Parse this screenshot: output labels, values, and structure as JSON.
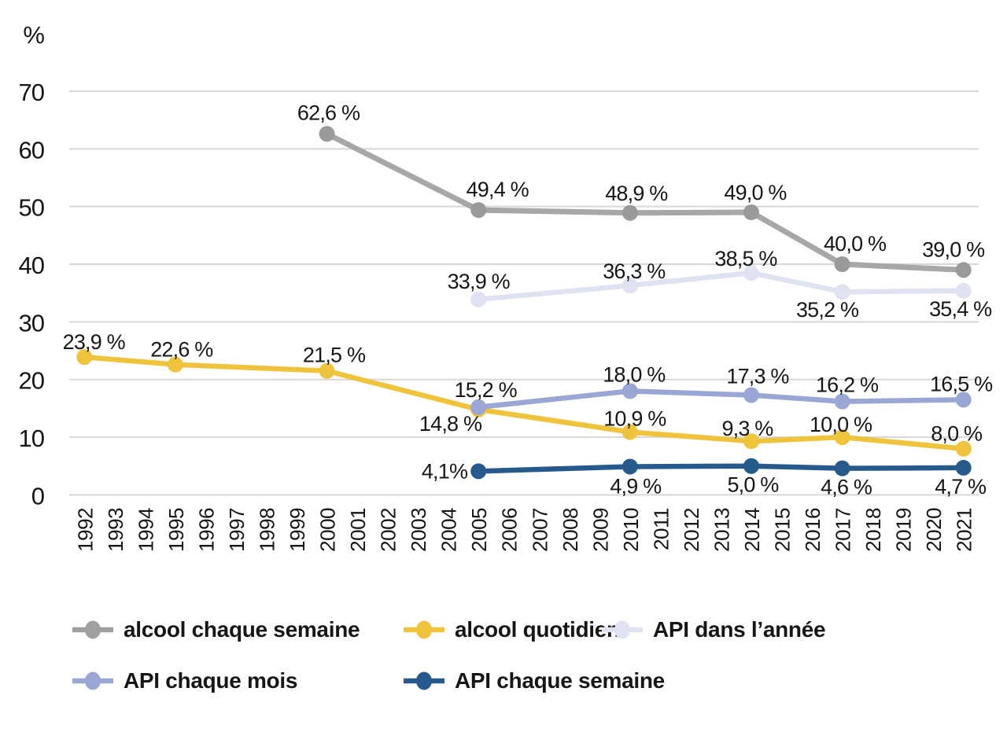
{
  "chart_data": {
    "type": "line",
    "title": "",
    "unit": "%",
    "ylim": [
      0,
      70
    ],
    "y_ticks": [
      70,
      60,
      50,
      40,
      30,
      20,
      10,
      0
    ],
    "grid": true,
    "legend_position": "bottom",
    "x_categories": [
      "1992",
      "1993",
      "1994",
      "1995",
      "1996",
      "1997",
      "1998",
      "1999",
      "2000",
      "2001",
      "2002",
      "2003",
      "2004",
      "2005",
      "2006",
      "2007",
      "2008",
      "2009",
      "2010",
      "2011",
      "2012",
      "2013",
      "2014",
      "2015",
      "2016",
      "2017",
      "2018",
      "2019",
      "2020",
      "2021"
    ],
    "series": [
      {
        "id": "api-dans-lannee",
        "name": "API dans l’année",
        "color": "#dfe2f1",
        "width": 6.5,
        "points": [
          {
            "x": "2005",
            "v": 33.9,
            "label": "33,9 %",
            "dx": 0,
            "dy": -14
          },
          {
            "x": "2010",
            "v": 36.3,
            "label": "36,3 %",
            "dx": 5,
            "dy": -9
          },
          {
            "x": "2014",
            "v": 38.5,
            "label": "38,5 %",
            "dx": -7,
            "dy": -9
          },
          {
            "x": "2017",
            "v": 35.2,
            "label": "35,2 %",
            "dx": -19,
            "dy": 32
          },
          {
            "x": "2021",
            "v": 35.4,
            "label": "35,4 %",
            "dx": -4,
            "dy": 32
          }
        ]
      },
      {
        "id": "alcool-chaque-semaine",
        "name": "alcool chaque semaine",
        "color": "#a7a7a7",
        "marker": "#9a9a9a",
        "width": 7,
        "points": [
          {
            "x": "2000",
            "v": 62.6,
            "label": "62,6 %",
            "dx": 2,
            "dy": -18
          },
          {
            "x": "2005",
            "v": 49.4,
            "label": "49,4 %",
            "dx": 24,
            "dy": -17
          },
          {
            "x": "2010",
            "v": 48.9,
            "label": "48,9 %",
            "dx": 8,
            "dy": -16
          },
          {
            "x": "2014",
            "v": 49.0,
            "label": "49,0 %",
            "dx": 5,
            "dy": -16
          },
          {
            "x": "2017",
            "v": 40.0,
            "label": "40,0 %",
            "dx": 16,
            "dy": -17
          },
          {
            "x": "2021",
            "v": 39.0,
            "label": "39,0 %",
            "dx": -13,
            "dy": -17
          }
        ]
      },
      {
        "id": "alcool-quotidien",
        "name": "alcool quotidien",
        "color": "#f0c33c",
        "width": 6.5,
        "points": [
          {
            "x": "1992",
            "v": 23.9,
            "label": "23,9 %",
            "dx": 12,
            "dy": -10
          },
          {
            "x": "1995",
            "v": 22.6,
            "label": "22,6 %",
            "dx": 8,
            "dy": -10
          },
          {
            "x": "2000",
            "v": 21.5,
            "label": "21,5 %",
            "dx": 9,
            "dy": -11
          },
          {
            "x": "2005",
            "v": 14.8,
            "label": "14,8 %",
            "dx": 4,
            "dy": 27,
            "anchor": "end"
          },
          {
            "x": "2010",
            "v": 10.9,
            "label": "10,9 %",
            "dx": 6,
            "dy": -8
          },
          {
            "x": "2014",
            "v": 9.3,
            "label": "9,3 %",
            "dx": -5,
            "dy": -7
          },
          {
            "x": "2017",
            "v": 10.0,
            "label": "10,0 %",
            "dx": -2,
            "dy": -7
          },
          {
            "x": "2021",
            "v": 8.0,
            "label": "8,0 %",
            "dx": -9,
            "dy": -10
          }
        ]
      },
      {
        "id": "api-chaque-mois",
        "name": "API chaque mois",
        "color": "#9aa7d4",
        "width": 6.5,
        "points": [
          {
            "x": "2005",
            "v": 15.2,
            "label": "15,2 %",
            "dx": 9,
            "dy": -13
          },
          {
            "x": "2010",
            "v": 18.0,
            "label": "18,0 %",
            "dx": 5,
            "dy": -12
          },
          {
            "x": "2014",
            "v": 17.3,
            "label": "17,3 %",
            "dx": 8,
            "dy": -15
          },
          {
            "x": "2017",
            "v": 16.2,
            "label": "16,2 %",
            "dx": 6,
            "dy": -12
          },
          {
            "x": "2021",
            "v": 16.5,
            "label": "16,5 %",
            "dx": -3,
            "dy": -11
          }
        ]
      },
      {
        "id": "api-chaque-semaine",
        "name": "API chaque semaine",
        "color": "#265a8c",
        "width": 6.5,
        "points": [
          {
            "x": "2005",
            "v": 4.1,
            "label": "4,1%",
            "dx": -14,
            "dy": 9,
            "anchor": "end"
          },
          {
            "x": "2010",
            "v": 4.9,
            "label": "4,9 %",
            "dx": 7,
            "dy": 34
          },
          {
            "x": "2014",
            "v": 5.0,
            "label": "5,0 %",
            "dx": 2,
            "dy": 33
          },
          {
            "x": "2017",
            "v": 4.6,
            "label": "4,6 %",
            "dx": 5,
            "dy": 33
          },
          {
            "x": "2021",
            "v": 4.7,
            "label": "4,7 %",
            "dx": -4,
            "dy": 33
          }
        ]
      }
    ]
  },
  "y_axis": {
    "unit": "%"
  },
  "legend": {
    "items": [
      {
        "label": "alcool chaque semaine",
        "color": "#a0a0a0"
      },
      {
        "label": "alcool quotidien",
        "color": "#f0c33c"
      },
      {
        "label": "API dans l’année",
        "color": "#dfe2f1"
      },
      {
        "label": "API chaque mois",
        "color": "#9aa7d4"
      },
      {
        "label": "API chaque semaine",
        "color": "#265a8c"
      }
    ]
  }
}
